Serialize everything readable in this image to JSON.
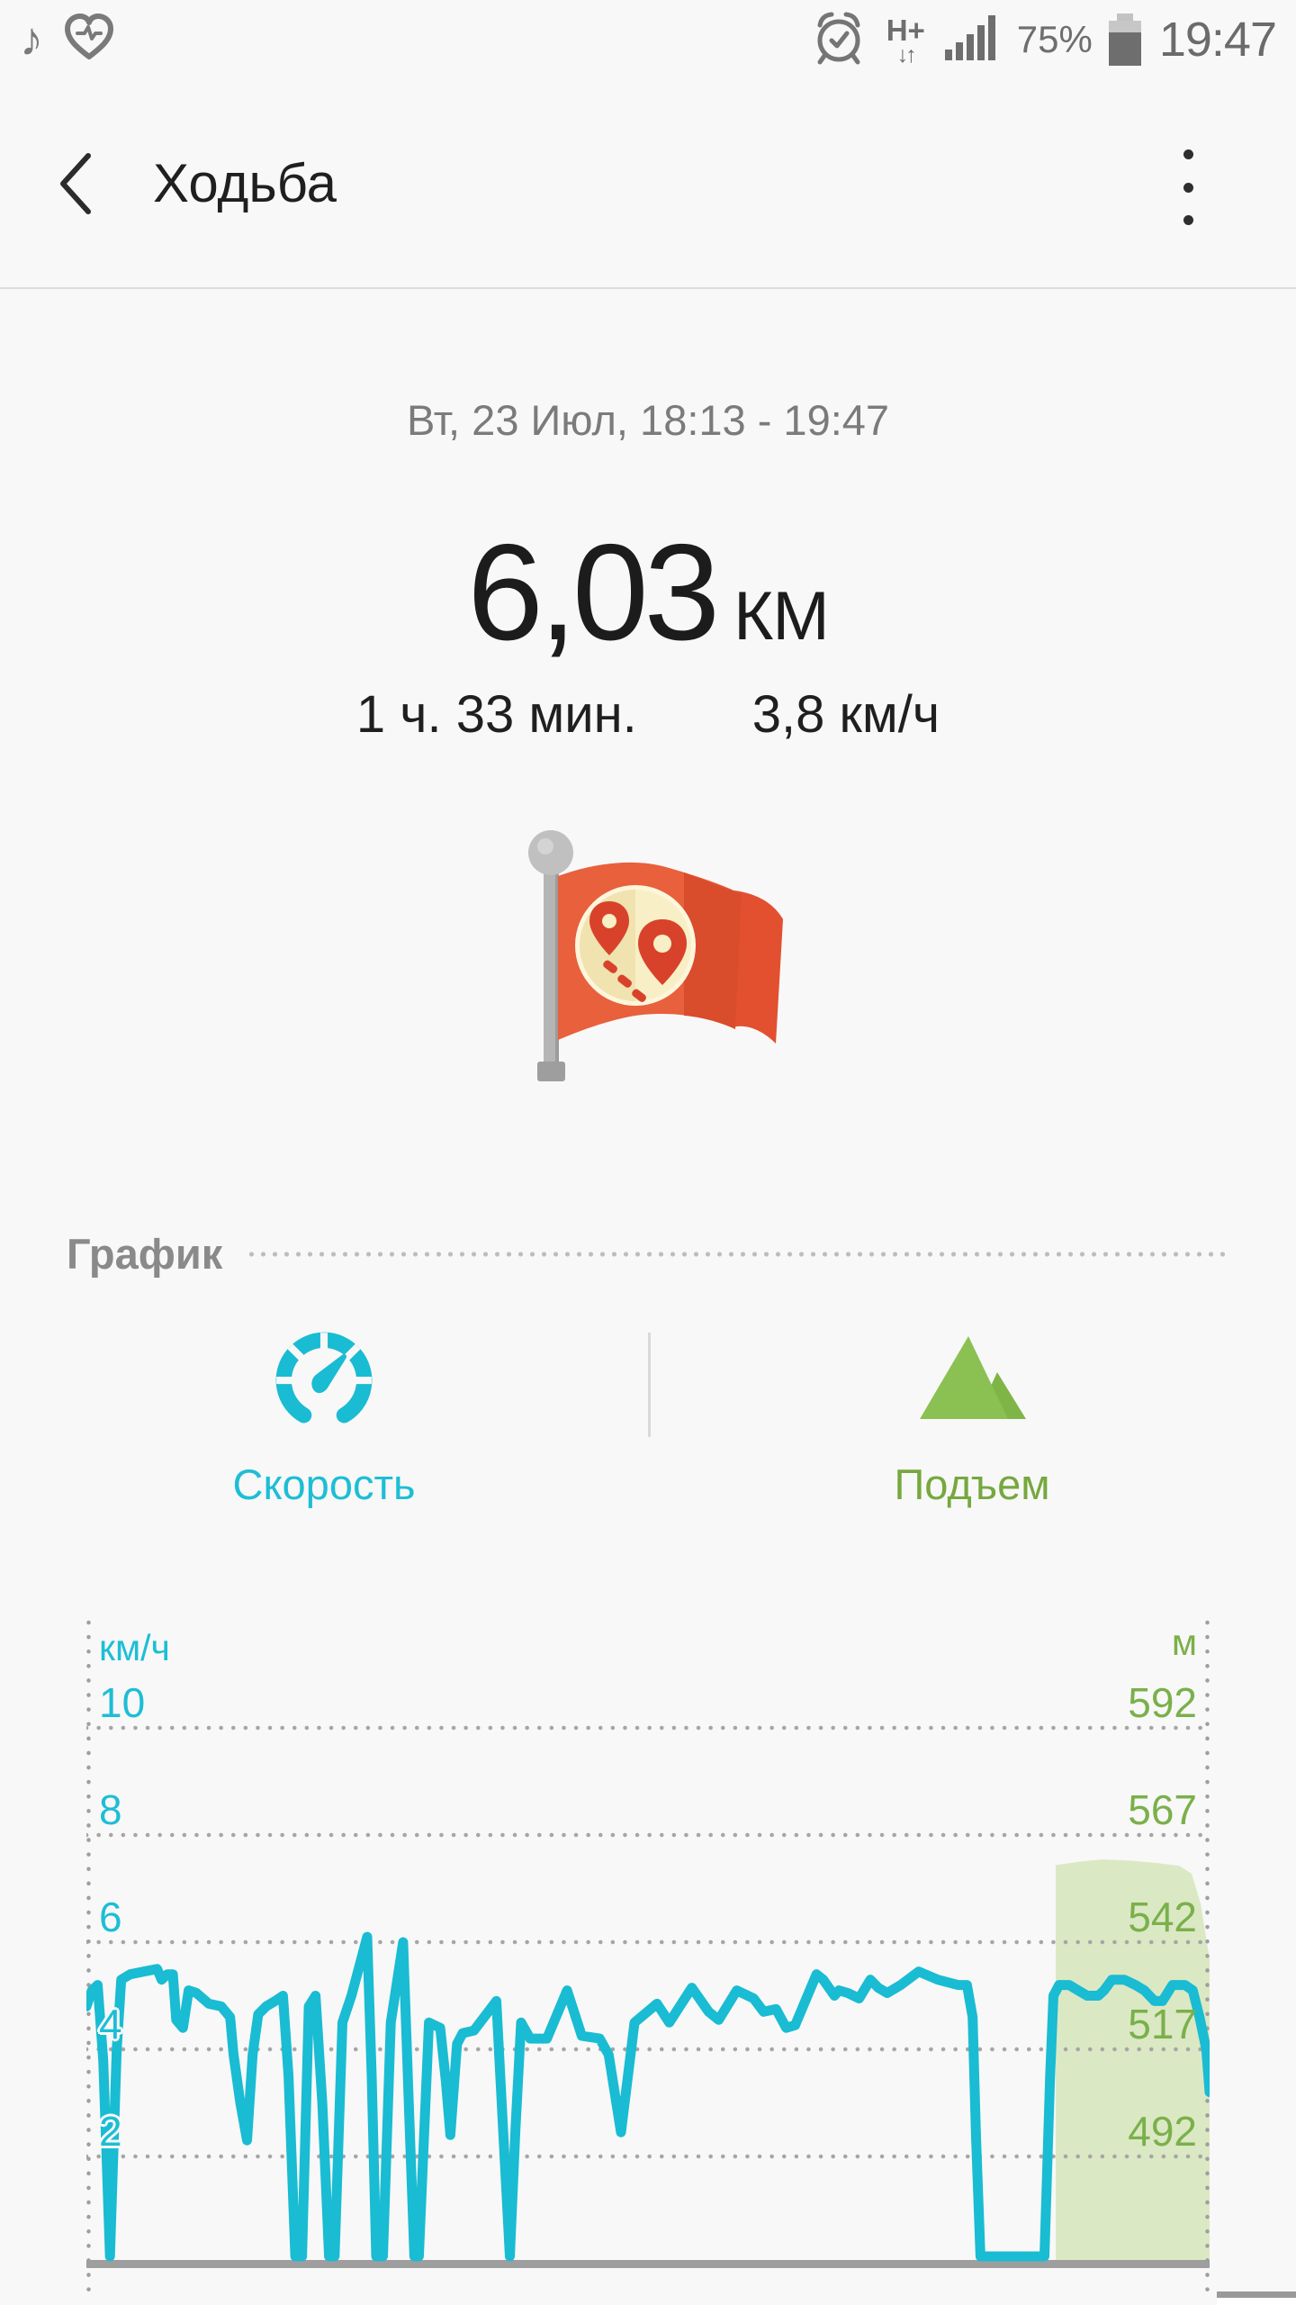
{
  "status_bar": {
    "time": "19:47",
    "battery_percent": "75%",
    "network_label": "H+",
    "network_arrows": "↓↑"
  },
  "header": {
    "title": "Ходьба"
  },
  "summary": {
    "datetime_range": "Вт, 23 Июл, 18:13 - 19:47",
    "distance_value": "6,03",
    "distance_unit": "КМ",
    "duration": "1 ч. 33 мин.",
    "avg_speed": "3,8 км/ч"
  },
  "section": {
    "title": "График"
  },
  "tabs": {
    "speed": {
      "label": "Скорость",
      "color": "#1dbed5"
    },
    "elevation": {
      "label": "Подъем",
      "color": "#76a83e"
    }
  },
  "colors": {
    "accent_teal": "#19bcd2",
    "accent_green": "#8bc152",
    "band_green": "#dbe8c4",
    "baseline_gray": "#9e9e9e",
    "grid_dot_gray": "#a6a6a6",
    "background": "#f8f8f8"
  },
  "chart_data": {
    "type": "line",
    "title": "График",
    "grid": "dotted",
    "legend": "none",
    "left_axis": {
      "unit": "км/ч",
      "ticks": [
        "10",
        "8",
        "6",
        "4",
        "2"
      ],
      "tick_values": [
        10,
        8,
        6,
        4,
        2
      ],
      "min": 0,
      "grid_step": 2,
      "color": "#1dbed5"
    },
    "right_axis": {
      "unit": "м",
      "ticks": [
        "592",
        "567",
        "542",
        "517",
        "492"
      ],
      "tick_values": [
        592,
        567,
        542,
        517,
        492
      ],
      "grid_step": 25,
      "color": "#7ab04a"
    },
    "series": [
      {
        "name": "Скорость",
        "unit": "км/ч",
        "type": "line",
        "color": "#19bcd2",
        "points_x_pct_kmh": [
          [
            0,
            4.8
          ],
          [
            0.5,
            5.1
          ],
          [
            1.0,
            5.2
          ],
          [
            1.5,
            3.8
          ],
          [
            2.1,
            0
          ],
          [
            2.7,
            4.0
          ],
          [
            3.1,
            5.3
          ],
          [
            3.9,
            5.4
          ],
          [
            5.1,
            5.45
          ],
          [
            6.3,
            5.5
          ],
          [
            6.7,
            5.3
          ],
          [
            7.2,
            5.4
          ],
          [
            7.7,
            5.4
          ],
          [
            8.0,
            4.55
          ],
          [
            8.6,
            4.4
          ],
          [
            9.1,
            5.1
          ],
          [
            9.8,
            5.05
          ],
          [
            10.9,
            4.85
          ],
          [
            12.0,
            4.8
          ],
          [
            12.8,
            4.6
          ],
          [
            13.1,
            3.9
          ],
          [
            13.7,
            3.0
          ],
          [
            14.3,
            2.3
          ],
          [
            14.8,
            3.9
          ],
          [
            15.3,
            4.65
          ],
          [
            16.0,
            4.8
          ],
          [
            16.8,
            4.9
          ],
          [
            17.5,
            5.0
          ],
          [
            18.0,
            3.5
          ],
          [
            18.6,
            0
          ],
          [
            19.2,
            0
          ],
          [
            19.8,
            4.8
          ],
          [
            20.4,
            5.0
          ],
          [
            21.0,
            3.0
          ],
          [
            21.6,
            0
          ],
          [
            22.1,
            0
          ],
          [
            22.8,
            4.5
          ],
          [
            23.6,
            5.0
          ],
          [
            25.0,
            6.1
          ],
          [
            25.4,
            3.5
          ],
          [
            25.8,
            0
          ],
          [
            26.4,
            0
          ],
          [
            27.1,
            4.5
          ],
          [
            28.2,
            6.0
          ],
          [
            28.7,
            3.0
          ],
          [
            29.2,
            0
          ],
          [
            29.6,
            0
          ],
          [
            30.5,
            4.5
          ],
          [
            31.5,
            4.4
          ],
          [
            32.0,
            3.4
          ],
          [
            32.4,
            2.4
          ],
          [
            33.0,
            4.1
          ],
          [
            33.5,
            4.3
          ],
          [
            34.5,
            4.35
          ],
          [
            36.5,
            4.9
          ],
          [
            37.1,
            2.5
          ],
          [
            37.7,
            0
          ],
          [
            38.2,
            2.5
          ],
          [
            38.7,
            4.5
          ],
          [
            39.5,
            4.2
          ],
          [
            41.0,
            4.2
          ],
          [
            42.8,
            5.1
          ],
          [
            44.1,
            4.25
          ],
          [
            45.7,
            4.2
          ],
          [
            46.5,
            3.9
          ],
          [
            47.6,
            2.45
          ],
          [
            48.8,
            4.5
          ],
          [
            50.8,
            4.85
          ],
          [
            51.9,
            4.5
          ],
          [
            53.9,
            5.15
          ],
          [
            55.4,
            4.7
          ],
          [
            56.3,
            4.55
          ],
          [
            57.9,
            5.1
          ],
          [
            59.4,
            4.95
          ],
          [
            60.3,
            4.7
          ],
          [
            61.4,
            4.75
          ],
          [
            62.3,
            4.4
          ],
          [
            63.1,
            4.45
          ],
          [
            65.0,
            5.4
          ],
          [
            65.6,
            5.3
          ],
          [
            66.6,
            5.0
          ],
          [
            67.0,
            5.1
          ],
          [
            67.8,
            5.05
          ],
          [
            68.8,
            4.95
          ],
          [
            69.8,
            5.3
          ],
          [
            70.5,
            5.15
          ],
          [
            71.3,
            5.05
          ],
          [
            72.5,
            5.2
          ],
          [
            74.1,
            5.45
          ],
          [
            75.8,
            5.3
          ],
          [
            77.6,
            5.2
          ],
          [
            78.4,
            5.2
          ],
          [
            78.9,
            4.6
          ],
          [
            79.2,
            2.4
          ],
          [
            79.6,
            0.1
          ],
          [
            85.3,
            0.1
          ],
          [
            85.8,
            3.5
          ],
          [
            86.1,
            5.0
          ],
          [
            86.6,
            5.2
          ],
          [
            87.5,
            5.2
          ],
          [
            88.3,
            5.1
          ],
          [
            89.1,
            5.0
          ],
          [
            90.1,
            5.0
          ],
          [
            90.6,
            5.1
          ],
          [
            91.3,
            5.3
          ],
          [
            92.4,
            5.3
          ],
          [
            93.4,
            5.2
          ],
          [
            94.2,
            5.1
          ],
          [
            95.1,
            4.9
          ],
          [
            95.8,
            4.9
          ],
          [
            96.7,
            5.2
          ],
          [
            97.8,
            5.2
          ],
          [
            98.5,
            5.1
          ],
          [
            99.1,
            4.6
          ],
          [
            99.7,
            4.0
          ],
          [
            100,
            3.2
          ]
        ]
      },
      {
        "name": "Подъем",
        "unit": "м",
        "type": "area",
        "color": "#dbe8c4",
        "x_range_pct": [
          86.3,
          100
        ],
        "points_x_pct_m": [
          [
            86.3,
            560
          ],
          [
            88.5,
            560.8
          ],
          [
            90.5,
            561.3
          ],
          [
            93.0,
            561
          ],
          [
            95.5,
            560.4
          ],
          [
            97.3,
            559.8
          ],
          [
            98.4,
            558
          ],
          [
            99.2,
            551
          ],
          [
            100,
            538
          ]
        ]
      }
    ]
  }
}
